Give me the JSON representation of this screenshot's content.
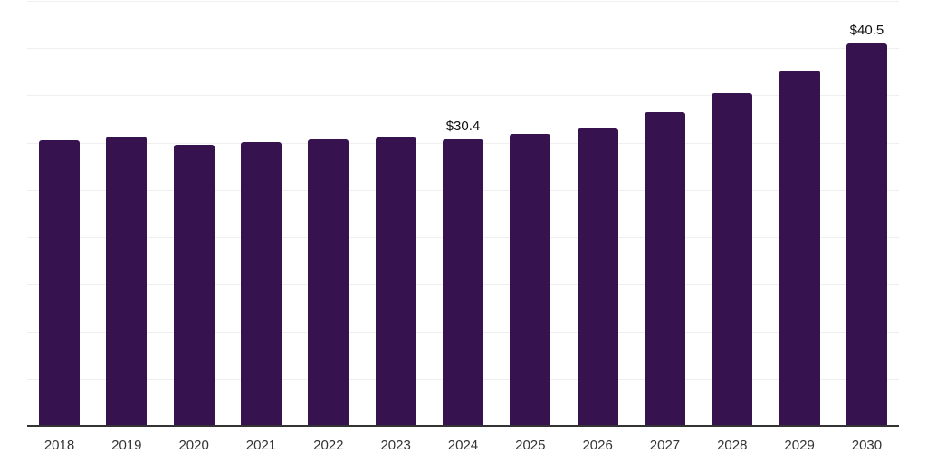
{
  "chart_data": {
    "type": "bar",
    "categories": [
      "2018",
      "2019",
      "2020",
      "2021",
      "2022",
      "2023",
      "2024",
      "2025",
      "2026",
      "2027",
      "2028",
      "2029",
      "2030"
    ],
    "values": [
      30.3,
      30.6,
      29.8,
      30.1,
      30.4,
      30.5,
      30.4,
      30.9,
      31.5,
      33.2,
      35.2,
      37.6,
      40.5
    ],
    "data_labels": [
      "",
      "",
      "",
      "",
      "",
      "",
      "$30.4",
      "",
      "",
      "",
      "",
      "",
      "$40.5"
    ],
    "title": "",
    "xlabel": "",
    "ylabel": "",
    "ylim": [
      0,
      45
    ],
    "gridline_step": 5,
    "grid": "horizontal",
    "legend": "none",
    "colors": {
      "bar": "#36124E",
      "gridline": "#efefef",
      "axis_line": "#333333",
      "tick_label": "#333333",
      "data_label": "#111111"
    }
  }
}
